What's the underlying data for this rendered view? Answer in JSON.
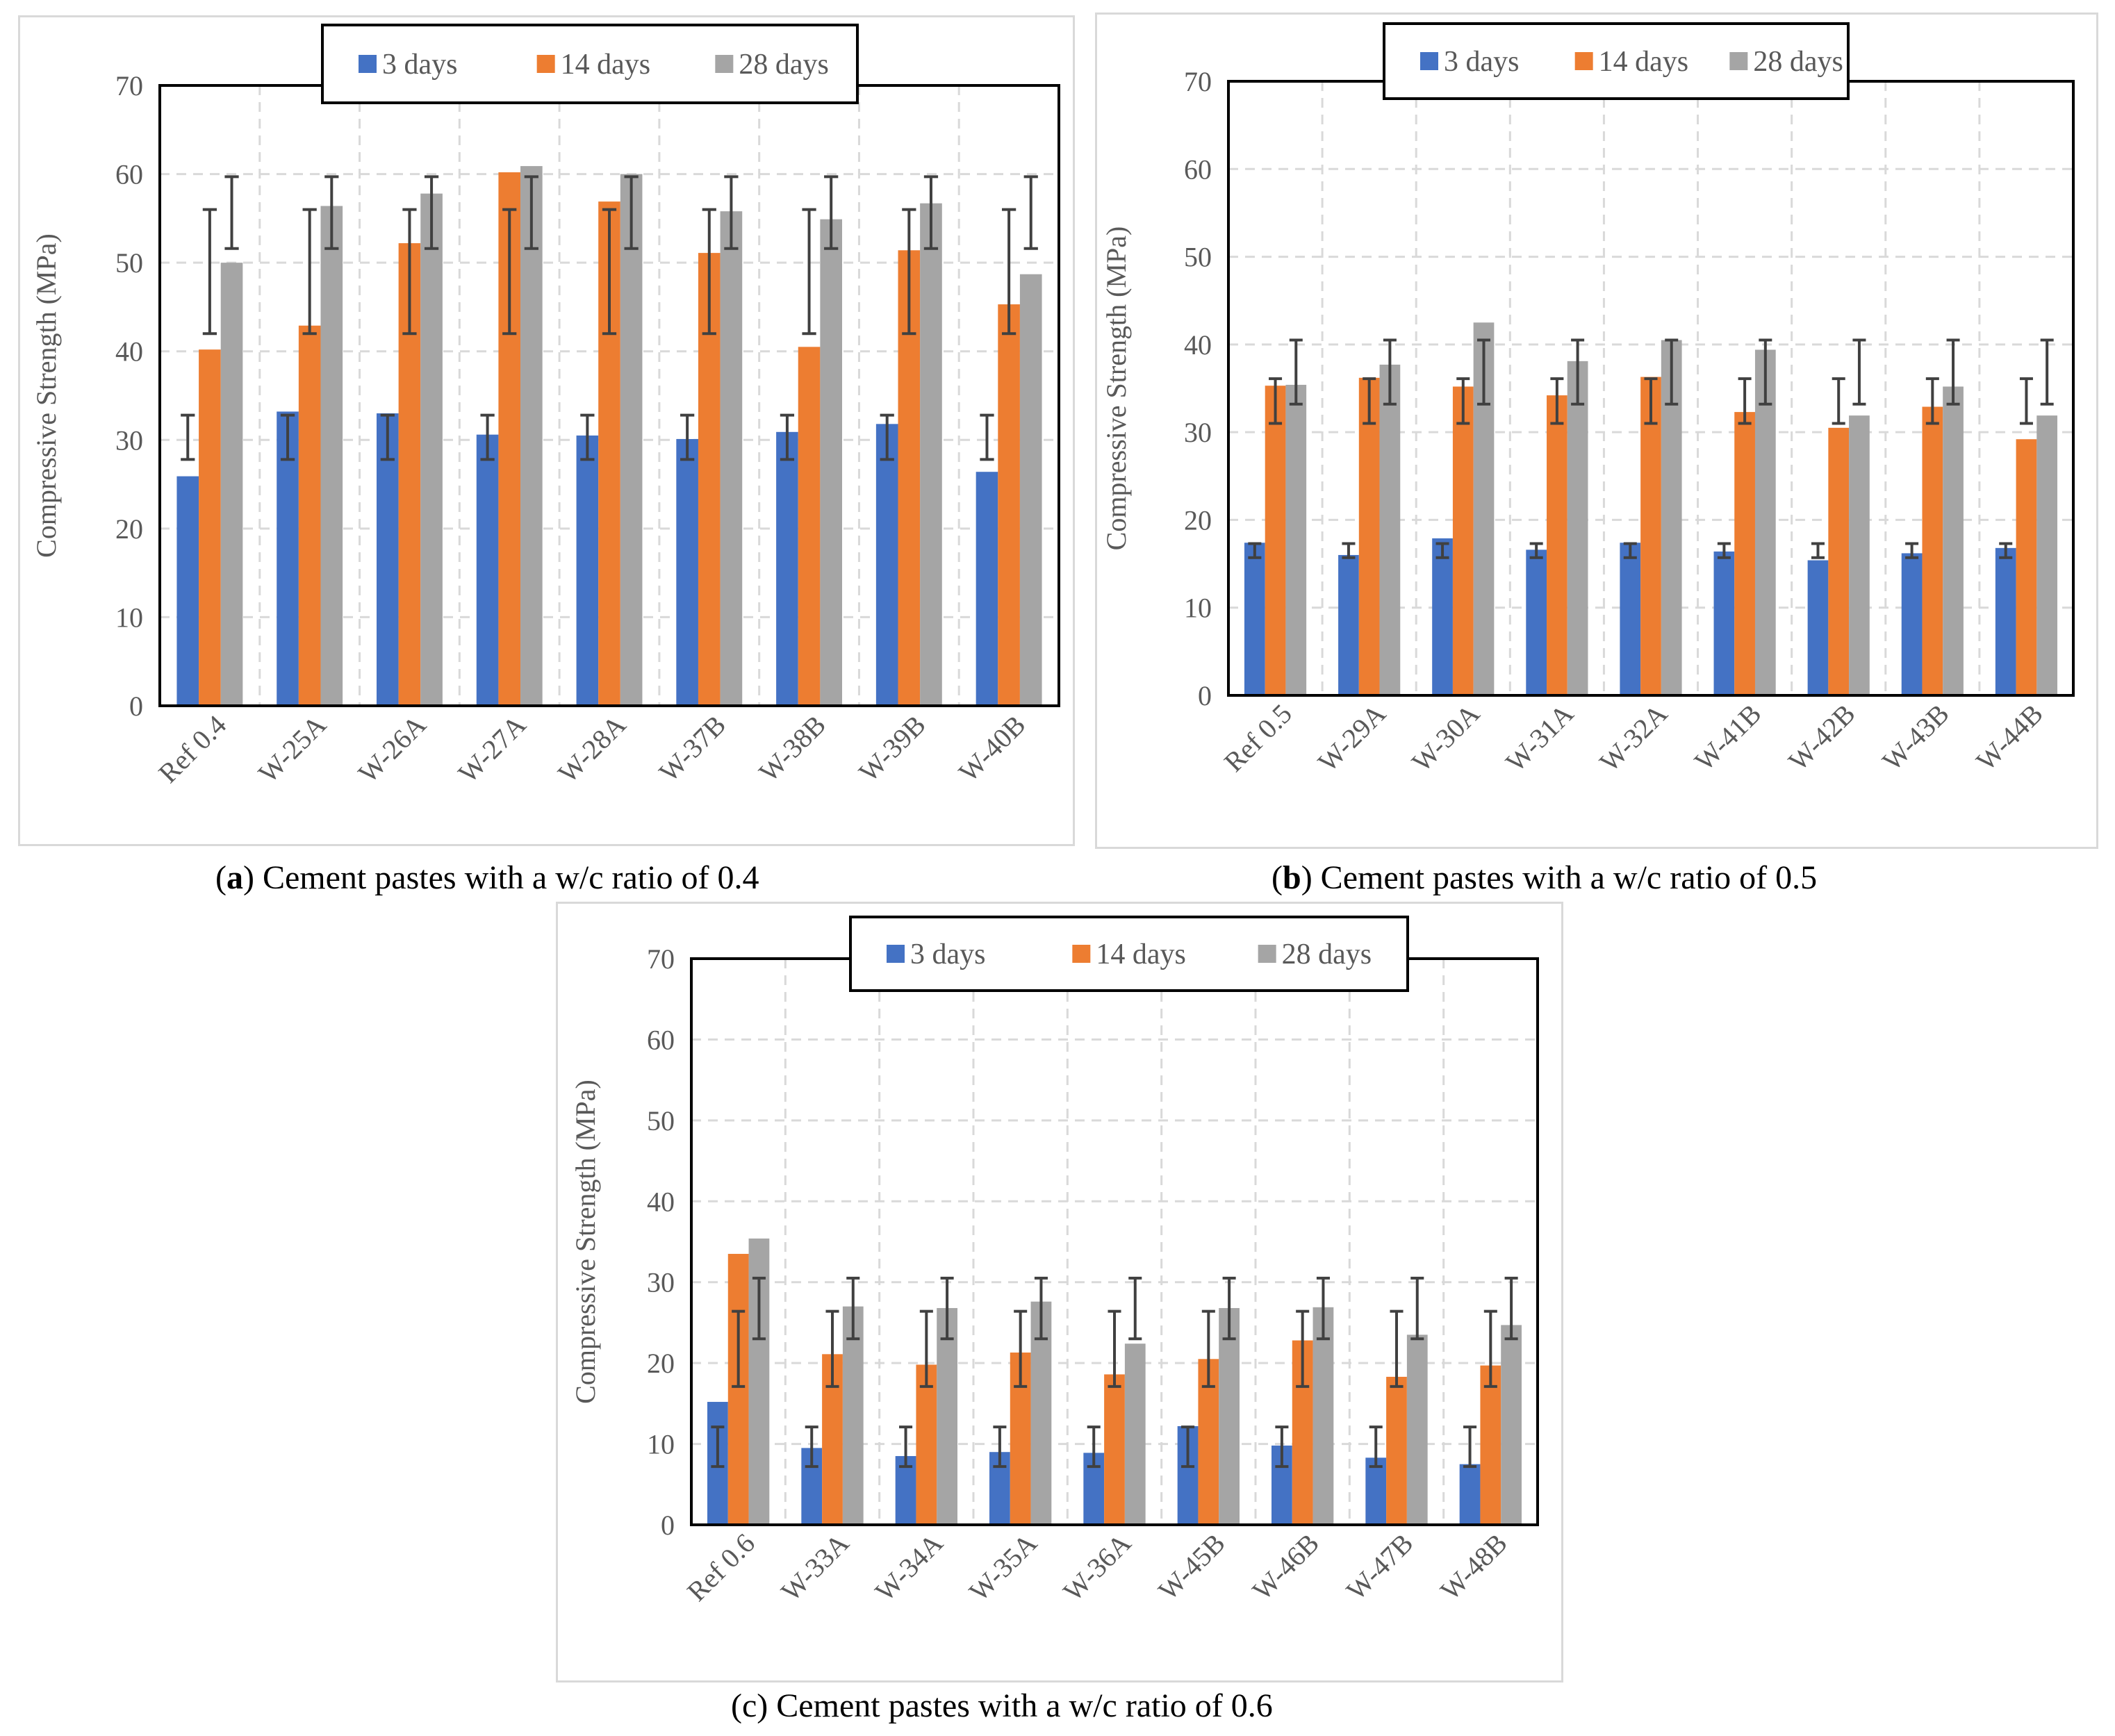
{
  "legend": [
    "3 days",
    "14 days",
    "28 days"
  ],
  "colors": {
    "3 days": "#4472c4",
    "14 days": "#ed7d31",
    "28 days": "#a5a5a5",
    "error_bar": "#404040",
    "grid": "#d9d9d9",
    "axis_text": "#595959"
  },
  "captions": [
    {
      "letter": "a",
      "text": "Cement pastes with a w/c ratio of 0.4"
    },
    {
      "letter": "b",
      "text": "Cement pastes with a w/c ratio of 0.5"
    },
    {
      "letter": "c",
      "text": "Cement pastes with a w/c ratio of 0.6"
    }
  ],
  "chart_data": [
    {
      "type": "bar",
      "title": "",
      "ylabel": "Compressive Strength (MPa)",
      "xlabel": "",
      "ylim": [
        0,
        70
      ],
      "yticks": [
        0,
        10,
        20,
        30,
        40,
        50,
        60,
        70
      ],
      "grid": true,
      "legend_position": "top",
      "categories": [
        "Ref 0.4",
        "W-25A",
        "W-26A",
        "W-27A",
        "W-28A",
        "W-37B",
        "W-38B",
        "W-39B",
        "W-40B"
      ],
      "series": [
        {
          "name": "3 days",
          "values": [
            25.9,
            33.2,
            33.0,
            30.6,
            30.5,
            30.1,
            30.9,
            31.8,
            26.4
          ],
          "error_low": 27.8,
          "error_high": 32.8
        },
        {
          "name": "14 days",
          "values": [
            40.2,
            42.9,
            52.2,
            60.2,
            56.9,
            51.1,
            40.5,
            51.4,
            45.3
          ],
          "error_low": 42.0,
          "error_high": 56.0
        },
        {
          "name": "28 days",
          "values": [
            50.0,
            56.4,
            57.8,
            60.9,
            60.0,
            55.8,
            54.9,
            56.7,
            48.7
          ],
          "error_low": 51.6,
          "error_high": 59.7
        }
      ]
    },
    {
      "type": "bar",
      "title": "",
      "ylabel": "Compressive Strength (MPa)",
      "xlabel": "",
      "ylim": [
        0,
        70
      ],
      "yticks": [
        0,
        10,
        20,
        30,
        40,
        50,
        60,
        70
      ],
      "grid": true,
      "legend_position": "top",
      "categories": [
        "Ref 0.5",
        "W-29A",
        "W-30A",
        "W-31A",
        "W-32A",
        "W-41B",
        "W-42B",
        "W-43B",
        "W-44B"
      ],
      "series": [
        {
          "name": "3 days",
          "values": [
            17.4,
            16.0,
            17.9,
            16.6,
            17.4,
            16.4,
            15.4,
            16.2,
            16.8
          ],
          "error_low": 15.7,
          "error_high": 17.3
        },
        {
          "name": "14 days",
          "values": [
            35.3,
            36.2,
            35.2,
            34.2,
            36.3,
            32.3,
            30.5,
            32.9,
            29.2
          ],
          "error_low": 31.0,
          "error_high": 36.1
        },
        {
          "name": "28 days",
          "values": [
            35.4,
            37.7,
            42.5,
            38.1,
            40.5,
            39.4,
            31.9,
            35.2,
            31.9
          ],
          "error_low": 33.2,
          "error_high": 40.5
        }
      ]
    },
    {
      "type": "bar",
      "title": "",
      "ylabel": "Compressive Strength (MPa)",
      "xlabel": "",
      "ylim": [
        0,
        70
      ],
      "yticks": [
        0,
        10,
        20,
        30,
        40,
        50,
        60,
        70
      ],
      "grid": true,
      "legend_position": "top",
      "categories": [
        "Ref 0.6",
        "W-33A",
        "W-34A",
        "W-35A",
        "W-36A",
        "W-45B",
        "W-46B",
        "W-47B",
        "W-48B"
      ],
      "series": [
        {
          "name": "3 days",
          "values": [
            15.2,
            9.5,
            8.5,
            9.0,
            8.9,
            12.2,
            9.8,
            8.3,
            7.5
          ],
          "error_low": 7.2,
          "error_high": 12.1
        },
        {
          "name": "14 days",
          "values": [
            33.5,
            21.1,
            19.8,
            21.3,
            18.6,
            20.5,
            22.8,
            18.3,
            19.7
          ],
          "error_low": 17.1,
          "error_high": 26.4
        },
        {
          "name": "28 days",
          "values": [
            35.4,
            27.0,
            26.8,
            27.6,
            22.4,
            26.8,
            26.9,
            23.5,
            24.7
          ],
          "error_low": 23.0,
          "error_high": 30.5
        }
      ]
    }
  ]
}
